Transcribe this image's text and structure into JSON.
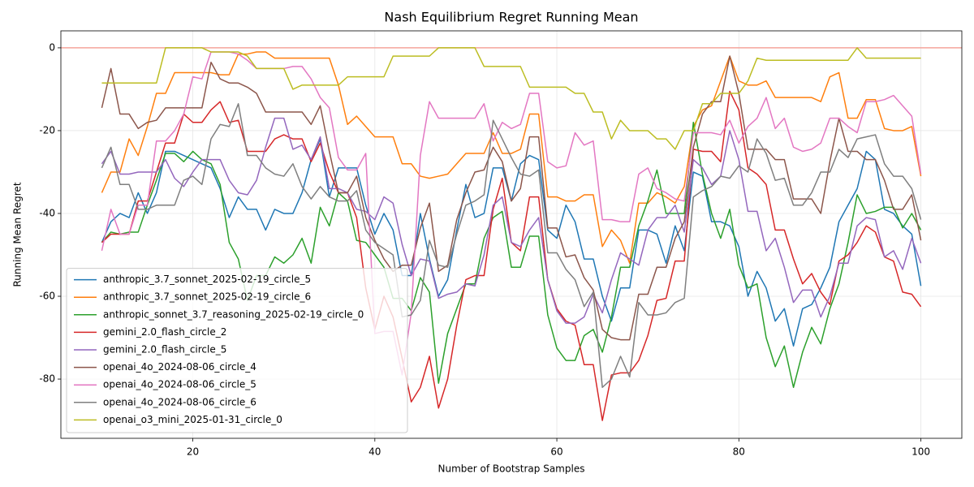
{
  "chart_data": {
    "type": "line",
    "title": "Nash Equilibrium Regret Running Mean",
    "x_label": "Number of Bootstrap Samples",
    "y_label": "Running Mean Regret",
    "x": [
      10,
      11,
      12,
      13,
      14,
      15,
      16,
      17,
      18,
      19,
      20,
      21,
      22,
      23,
      24,
      25,
      26,
      27,
      28,
      29,
      30,
      31,
      32,
      33,
      34,
      35,
      36,
      37,
      38,
      39,
      40,
      41,
      42,
      43,
      44,
      45,
      46,
      47,
      48,
      49,
      50,
      51,
      52,
      53,
      54,
      55,
      56,
      57,
      58,
      59,
      60,
      61,
      62,
      63,
      64,
      65,
      66,
      67,
      68,
      69,
      70,
      71,
      72,
      73,
      74,
      75,
      76,
      77,
      78,
      79,
      80,
      81,
      82,
      83,
      84,
      85,
      86,
      87,
      88,
      89,
      90,
      91,
      92,
      93,
      94,
      95,
      96,
      97,
      98,
      99,
      100
    ],
    "xlim": [
      5.5,
      104.5
    ],
    "ylim": [
      -94.3,
      4.1
    ],
    "xticks": [
      20,
      40,
      60,
      80,
      100
    ],
    "yticks": [
      0,
      -20,
      -40,
      -60,
      -80
    ],
    "grid": true,
    "legend_loc": "lower left",
    "reference_line": {
      "y": 0,
      "color": "#f4a49b"
    },
    "series": [
      {
        "name": "anthropic_3.7_sonnet_2025-02-19_circle_5",
        "color": "#1f77b4",
        "values": [
          -47,
          -42,
          -40,
          -41,
          -35,
          -40,
          -35,
          -25,
          -25,
          -26,
          -27,
          -28,
          -29,
          -34,
          -41,
          -36,
          -39,
          -39,
          -44,
          -39,
          -40,
          -40,
          -35,
          -27,
          -22,
          -36,
          -29,
          -29,
          -29,
          -38,
          -45,
          -40,
          -44,
          -55,
          -55,
          -40,
          -51,
          -60,
          -56,
          -44,
          -33,
          -41,
          -40,
          -29,
          -29,
          -37,
          -28,
          -26,
          -27,
          -44,
          -46,
          -38,
          -42,
          -51,
          -51,
          -60,
          -66,
          -58,
          -58,
          -44,
          -44,
          -45,
          -52,
          -43,
          -49,
          -30,
          -31,
          -42,
          -42,
          -43,
          -48,
          -60,
          -54,
          -58,
          -66,
          -63,
          -72,
          -63,
          -62,
          -58,
          -53,
          -42,
          -38,
          -34,
          -25,
          -27,
          -39,
          -40,
          -43,
          -45,
          -57.5
        ]
      },
      {
        "name": "anthropic_3.7_sonnet_2025-02-19_circle_6",
        "color": "#ff7f0e",
        "values": [
          -35,
          -30,
          -30,
          -22,
          -26,
          -19,
          -11,
          -11,
          -6,
          -6,
          -6,
          -6,
          -6,
          -6.5,
          -6.5,
          -1.5,
          -1.5,
          -1,
          -1,
          -2.5,
          -2.5,
          -2.5,
          -2.5,
          -2.5,
          -2.5,
          -2.5,
          -9,
          -18.5,
          -16.5,
          -19,
          -21.5,
          -21.5,
          -21.5,
          -28,
          -28,
          -31,
          -31.5,
          -31,
          -30.5,
          -28,
          -25.5,
          -25.5,
          -25.5,
          -20.5,
          -25.5,
          -25.5,
          -24.5,
          -16,
          -16,
          -36,
          -36,
          -37,
          -37,
          -35.5,
          -35.5,
          -48,
          -44,
          -46.5,
          -52,
          -37.5,
          -37.5,
          -35,
          -36,
          -37.5,
          -33.5,
          -19,
          -15,
          -14,
          -8,
          -2,
          -8,
          -9,
          -9,
          -8,
          -12,
          -12,
          -12,
          -12,
          -12,
          -13,
          -7,
          -6,
          -17,
          -17,
          -12.5,
          -12.5,
          -19.5,
          -20,
          -20,
          -19,
          -31
        ]
      },
      {
        "name": "anthropic_sonnet_3.7_reasoning_2025-02-19_circle_0",
        "color": "#2ca02c",
        "values": [
          -47,
          -44.5,
          -45,
          -44.5,
          -44.5,
          -38,
          -32,
          -25.5,
          -25.5,
          -27.5,
          -25,
          -27,
          -28,
          -33,
          -47,
          -51,
          -61,
          -55,
          -55,
          -50.5,
          -52,
          -50,
          -46,
          -52,
          -38.5,
          -43,
          -35,
          -37,
          -46.5,
          -47,
          -50,
          -53,
          -60.5,
          -60.5,
          -63.5,
          -55.5,
          -59,
          -81,
          -69,
          -63,
          -57,
          -57,
          -46,
          -41,
          -39.5,
          -53,
          -53,
          -45.5,
          -45.5,
          -64.5,
          -72.5,
          -75.5,
          -75.5,
          -69.5,
          -68,
          -73.5,
          -65,
          -53,
          -53,
          -43,
          -37,
          -29.5,
          -40,
          -40,
          -40,
          -18,
          -30.5,
          -40,
          -46,
          -39,
          -52.5,
          -58,
          -57,
          -70,
          -77,
          -72,
          -82,
          -73.5,
          -67.5,
          -71.5,
          -63,
          -57,
          -47,
          -35.5,
          -40,
          -39.5,
          -38.5,
          -38.5,
          -43.5,
          -40,
          -44
        ]
      },
      {
        "name": "gemini_2.0_flash_circle_2",
        "color": "#d62728",
        "values": [
          -47,
          -45,
          -45,
          -45,
          -37,
          -37,
          -30,
          -23,
          -23,
          -16,
          -18,
          -18,
          -15,
          -13,
          -18,
          -17.5,
          -25,
          -25,
          -25,
          -22,
          -21,
          -22,
          -22,
          -27.5,
          -23,
          -30,
          -35,
          -35,
          -41,
          -58,
          -68,
          -60,
          -65,
          -75,
          -85.5,
          -82,
          -74.5,
          -87,
          -80,
          -67,
          -56,
          -55,
          -55,
          -39,
          -31.5,
          -47,
          -49,
          -36,
          -36,
          -56,
          -63,
          -66,
          -67,
          -76.5,
          -76.5,
          -90,
          -79,
          -78.5,
          -78.5,
          -75.5,
          -69.5,
          -61,
          -60.5,
          -51.5,
          -51.5,
          -24.5,
          -25,
          -25,
          -27.5,
          -10.5,
          -15,
          -29,
          -30.5,
          -33,
          -44,
          -44,
          -51,
          -57,
          -54.5,
          -59,
          -62,
          -51.5,
          -50,
          -47,
          -43,
          -44.5,
          -50.5,
          -51.5,
          -59,
          -59.5,
          -62.5
        ]
      },
      {
        "name": "gemini_2.0_flash_circle_5",
        "color": "#9467bd",
        "values": [
          -28,
          -25,
          -30.5,
          -30.5,
          -30,
          -30,
          -30,
          -27,
          -31.5,
          -33.5,
          -30,
          -27,
          -27,
          -27,
          -32,
          -35,
          -35.5,
          -32,
          -24,
          -17,
          -17,
          -24.5,
          -23.5,
          -27,
          -21.5,
          -34,
          -34,
          -35,
          -39,
          -39.5,
          -41.5,
          -36,
          -37.5,
          -47.5,
          -55,
          -51,
          -51.5,
          -60.5,
          -59.5,
          -59,
          -57,
          -57.5,
          -50,
          -38,
          -36,
          -47,
          -48,
          -44,
          -41,
          -56,
          -63.5,
          -66.5,
          -66.5,
          -65,
          -59.5,
          -64,
          -56,
          -49.5,
          -51,
          -52.5,
          -44,
          -41,
          -41,
          -38,
          -44.5,
          -27,
          -29,
          -33,
          -31,
          -20,
          -27,
          -39.5,
          -39.5,
          -49,
          -46,
          -53,
          -61.5,
          -58.5,
          -58.5,
          -65,
          -60,
          -52,
          -52,
          -43,
          -41,
          -41.5,
          -50.5,
          -49,
          -53.5,
          -46,
          -52
        ]
      },
      {
        "name": "openai_4o_2024-08-06_circle_4",
        "color": "#8c564b",
        "values": [
          -14.5,
          -5,
          -16,
          -16,
          -19.5,
          -18,
          -17.5,
          -14.5,
          -14.5,
          -14.5,
          -14.5,
          -14.5,
          -3.5,
          -7.5,
          -8.5,
          -8.5,
          -9.5,
          -11,
          -15.5,
          -15.5,
          -15.5,
          -15.5,
          -15.5,
          -18.5,
          -14,
          -25,
          -35,
          -35,
          -31,
          -41,
          -46.5,
          -51,
          -54,
          -52.5,
          -52.5,
          -43.5,
          -37.5,
          -54,
          -52.5,
          -41.5,
          -35,
          -30,
          -29.5,
          -24,
          -27.5,
          -37,
          -34,
          -21.5,
          -21.5,
          -43.5,
          -43.5,
          -50.5,
          -50,
          -55.5,
          -58.5,
          -68,
          -70,
          -70.5,
          -70.5,
          -59.5,
          -59.5,
          -53,
          -53,
          -46,
          -42,
          -24,
          -16,
          -13,
          -13,
          -2,
          -11,
          -24.5,
          -24.5,
          -24.5,
          -27,
          -27,
          -36.5,
          -36.5,
          -36.5,
          -40,
          -27.5,
          -17,
          -25,
          -25,
          -27,
          -27,
          -32,
          -39,
          -39,
          -35.5,
          -46.5
        ]
      },
      {
        "name": "openai_4o_2024-08-06_circle_5",
        "color": "#e377c2",
        "values": [
          -49,
          -39,
          -45,
          -45,
          -38,
          -38,
          -22.5,
          -22.5,
          -20,
          -16,
          -7,
          -7.5,
          -1,
          -1,
          -1,
          -1.5,
          -3,
          -5,
          -5,
          -5,
          -5,
          -4.5,
          -4.5,
          -7.5,
          -12,
          -14.5,
          -26.5,
          -29.5,
          -29.5,
          -25.5,
          -69,
          -68.5,
          -68.5,
          -79,
          -64,
          -26,
          -13,
          -17,
          -17,
          -17,
          -17,
          -17,
          -13.5,
          -22.5,
          -18,
          -19.5,
          -18.5,
          -11,
          -11,
          -27.5,
          -29,
          -28.5,
          -20.5,
          -23.5,
          -22.5,
          -41.5,
          -41.5,
          -42,
          -42,
          -30.5,
          -29,
          -34,
          -35,
          -36.5,
          -37,
          -20.5,
          -20.5,
          -20.5,
          -21,
          -17.5,
          -23,
          -19,
          -17,
          -12,
          -19.5,
          -17,
          -24,
          -25,
          -24.5,
          -23,
          -17,
          -17,
          -19,
          -20.5,
          -13,
          -13,
          -12.5,
          -11.5,
          -14,
          -16.5,
          -30.5
        ]
      },
      {
        "name": "openai_4o_2024-08-06_circle_6",
        "color": "#7f7f7f",
        "values": [
          -29,
          -24,
          -33,
          -33,
          -39,
          -39,
          -38,
          -38,
          -38,
          -32,
          -31,
          -33,
          -22,
          -18.5,
          -19,
          -13.5,
          -26,
          -26,
          -29,
          -30.5,
          -31,
          -28,
          -33.5,
          -36.5,
          -33.5,
          -36,
          -37,
          -37,
          -34.5,
          -44,
          -47,
          -48.5,
          -50,
          -65,
          -64.5,
          -61,
          -46.5,
          -52.5,
          -53,
          -45,
          -38,
          -37,
          -35.5,
          -17.5,
          -22,
          -26.5,
          -30.5,
          -31,
          -29.5,
          -49.5,
          -49.5,
          -53.5,
          -56,
          -62.5,
          -59,
          -82,
          -80,
          -74.5,
          -79.5,
          -61.5,
          -64.5,
          -64.5,
          -64,
          -61.5,
          -60.5,
          -36,
          -34.5,
          -33.5,
          -31,
          -31.5,
          -28.5,
          -30,
          -22,
          -25.5,
          -32,
          -31.5,
          -38,
          -38,
          -35,
          -30,
          -30,
          -24.5,
          -26.5,
          -22,
          -21.5,
          -21,
          -28,
          -31,
          -31,
          -34,
          -41.5
        ]
      },
      {
        "name": "openai_o3_mini_2025-01-31_circle_0",
        "color": "#bcbd22",
        "values": [
          -8.5,
          -8.5,
          -8.5,
          -8.5,
          -8.5,
          -8.5,
          -8.5,
          0,
          0,
          0,
          0,
          0,
          -1,
          -1,
          -1,
          -1,
          -2,
          -5,
          -5,
          -5,
          -5,
          -10,
          -9,
          -9,
          -9,
          -9,
          -9,
          -7,
          -7,
          -7,
          -7,
          -7,
          -2,
          -2,
          -2,
          -2,
          -2,
          0,
          0,
          0,
          0,
          0,
          -4.5,
          -4.5,
          -4.5,
          -4.5,
          -4.5,
          -9.5,
          -9.5,
          -9.5,
          -9.5,
          -9.5,
          -11,
          -11,
          -15.5,
          -15.5,
          -22,
          -17.5,
          -20,
          -20,
          -20,
          -22,
          -22,
          -24.5,
          -20,
          -20,
          -13.5,
          -13.5,
          -11,
          -11,
          -11,
          -8,
          -2.5,
          -3,
          -3,
          -3,
          -3,
          -3,
          -3,
          -3,
          -3,
          -3,
          -3,
          0,
          -2.5,
          -2.5,
          -2.5,
          -2.5,
          -2.5,
          -2.5,
          -2.5
        ]
      }
    ]
  }
}
